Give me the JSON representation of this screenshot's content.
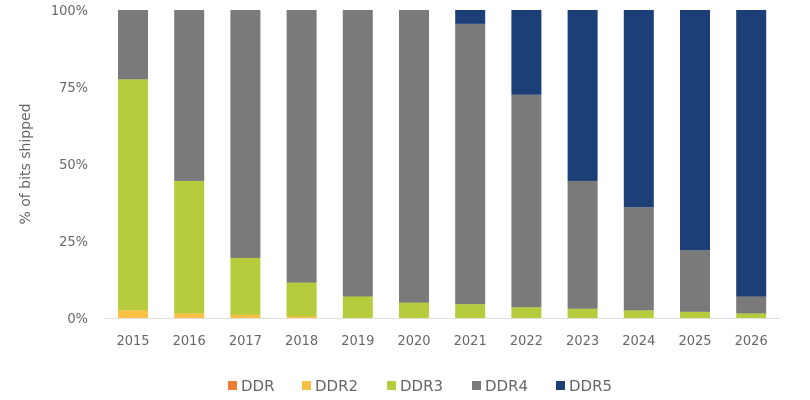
{
  "chart_data": {
    "type": "bar",
    "stacked": true,
    "title": "",
    "xlabel": "",
    "ylabel": "% of bits shipped",
    "ylim": [
      0,
      100
    ],
    "yticks": [
      "0%",
      "25%",
      "50%",
      "75%",
      "100%"
    ],
    "grid": false,
    "legend_position": "bottom",
    "categories": [
      "2015",
      "2016",
      "2017",
      "2018",
      "2019",
      "2020",
      "2021",
      "2022",
      "2023",
      "2024",
      "2025",
      "2026"
    ],
    "series": [
      {
        "name": "DDR",
        "color": "#ed7d31",
        "values": [
          0,
          0,
          0,
          0,
          0,
          0,
          0,
          0,
          0,
          0,
          0,
          0
        ]
      },
      {
        "name": "DDR2",
        "color": "#f8c044",
        "values": [
          2.5,
          1.5,
          1,
          0.5,
          0,
          0,
          0,
          0,
          0,
          0,
          0,
          0
        ]
      },
      {
        "name": "DDR3",
        "color": "#b6cc3c",
        "values": [
          75,
          43,
          18.5,
          11,
          7,
          5,
          4.5,
          3.5,
          3,
          2.5,
          2,
          1.5
        ]
      },
      {
        "name": "DDR4",
        "color": "#7a7a7a",
        "values": [
          22.5,
          55.5,
          80.5,
          88.5,
          93,
          95,
          91,
          69,
          41.5,
          33.5,
          20,
          5.5
        ]
      },
      {
        "name": "DDR5",
        "color": "#1c3f78",
        "values": [
          0,
          0,
          0,
          0,
          0,
          0,
          4.5,
          27.5,
          55.5,
          64,
          78,
          93
        ]
      }
    ]
  }
}
